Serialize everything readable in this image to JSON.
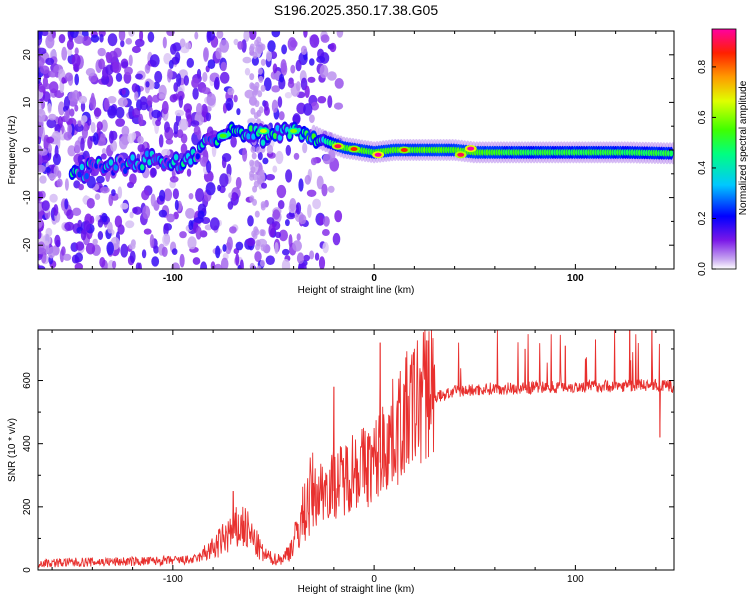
{
  "figure": {
    "title": "S196.2025.350.17.38.G05"
  },
  "chart_data": [
    {
      "type": "heatmap",
      "title": "S196.2025.350.17.38.G05",
      "xlabel": "Height of straight line (km)",
      "ylabel": "Frequency (Hz)",
      "xlim": [
        -167,
        149
      ],
      "ylim": [
        -25,
        25
      ],
      "x_ticks": [
        -100,
        0,
        100
      ],
      "x_tick_labels": [
        "-100",
        "0",
        "100"
      ],
      "y_ticks": [
        -20,
        -10,
        0,
        10,
        20
      ],
      "y_tick_labels": [
        "-20",
        "-10",
        "0",
        "10",
        "20"
      ],
      "colorbar": {
        "label": "Normalized spectral amplitude",
        "range": [
          0,
          0.95
        ],
        "ticks": [
          0.0,
          0.2,
          0.4,
          0.6,
          0.8
        ],
        "tick_labels": [
          "0.0",
          "0.2",
          "0.4",
          "0.6",
          "0.8"
        ],
        "colormap": "rainbow (white-violet-blue-cyan-green-yellow-orange-red-magenta)"
      },
      "ridge": [
        {
          "x": -150,
          "f": -5,
          "amp": 0.3
        },
        {
          "x": -140,
          "f": -4,
          "amp": 0.3
        },
        {
          "x": -125,
          "f": -3,
          "amp": 0.25
        },
        {
          "x": -110,
          "f": -2,
          "amp": 0.3
        },
        {
          "x": -95,
          "f": -3,
          "amp": 0.3
        },
        {
          "x": -85,
          "f": 1,
          "amp": 0.25
        },
        {
          "x": -75,
          "f": 3,
          "amp": 0.35
        },
        {
          "x": -65,
          "f": 4,
          "amp": 0.35
        },
        {
          "x": -55,
          "f": 3,
          "amp": 0.35
        },
        {
          "x": -45,
          "f": 4,
          "amp": 0.4
        },
        {
          "x": -35,
          "f": 4,
          "amp": 0.4
        },
        {
          "x": -25,
          "f": 2,
          "amp": 0.4
        },
        {
          "x": -15,
          "f": 0.5,
          "amp": 0.55
        },
        {
          "x": 0,
          "f": -0.5,
          "amp": 0.55
        },
        {
          "x": 10,
          "f": 0,
          "amp": 0.55
        },
        {
          "x": 20,
          "f": 0,
          "amp": 0.55
        },
        {
          "x": 30,
          "f": 0,
          "amp": 0.55
        },
        {
          "x": 40,
          "f": 0,
          "amp": 0.55
        },
        {
          "x": 50,
          "f": -0.5,
          "amp": 0.55
        },
        {
          "x": 75,
          "f": -0.5,
          "amp": 0.5
        },
        {
          "x": 100,
          "f": -0.5,
          "amp": 0.5
        },
        {
          "x": 125,
          "f": -0.5,
          "amp": 0.5
        },
        {
          "x": 148,
          "f": -0.7,
          "amp": 0.5
        }
      ],
      "peaks": [
        {
          "x": -18,
          "f": 0.8,
          "amp": 0.9
        },
        {
          "x": -10,
          "f": 0.2,
          "amp": 0.85
        },
        {
          "x": 2,
          "f": -1,
          "amp": 0.95
        },
        {
          "x": 15,
          "f": 0,
          "amp": 0.85
        },
        {
          "x": 43,
          "f": -1,
          "amp": 0.9
        },
        {
          "x": 48,
          "f": 0.3,
          "amp": 0.95
        },
        {
          "x": -55,
          "f": 4,
          "amp": 0.65
        },
        {
          "x": -40,
          "f": 4,
          "amp": 0.6
        },
        {
          "x": -75,
          "f": 3,
          "amp": 0.55
        }
      ]
    },
    {
      "type": "line",
      "xlabel": "Height of straight line (km)",
      "ylabel": "SNR (10 * v/v)",
      "xlim": [
        -167,
        149
      ],
      "ylim": [
        0,
        760
      ],
      "x_ticks": [
        -100,
        0,
        100
      ],
      "x_tick_labels": [
        "-100",
        "0",
        "100"
      ],
      "y_ticks": [
        0,
        200,
        400,
        600
      ],
      "y_tick_labels": [
        "0",
        "200",
        "400",
        "600"
      ],
      "series": [
        {
          "name": "SNR",
          "color": "#e8302e",
          "x": [
            -167,
            -140,
            -110,
            -90,
            -80,
            -72,
            -65,
            -60,
            -55,
            -50,
            -45,
            -40,
            -35,
            -30,
            -25,
            -20,
            -15,
            -10,
            -5,
            0,
            5,
            10,
            15,
            20,
            25,
            30,
            35,
            40,
            50,
            60,
            70,
            80,
            90,
            100,
            110,
            120,
            130,
            140,
            149
          ],
          "values": [
            22,
            25,
            28,
            32,
            55,
            95,
            115,
            80,
            40,
            28,
            30,
            70,
            150,
            210,
            240,
            250,
            265,
            300,
            300,
            310,
            360,
            400,
            440,
            480,
            520,
            545,
            555,
            565,
            570,
            575,
            575,
            578,
            580,
            580,
            582,
            583,
            585,
            585,
            580
          ]
        }
      ],
      "spikes": [
        {
          "x": -70,
          "value": 250
        },
        {
          "x": -20,
          "value": 580
        },
        {
          "x": 3,
          "value": 720
        },
        {
          "x": 30,
          "value": 650
        },
        {
          "x": 75,
          "value": 700
        },
        {
          "x": 95,
          "value": 710
        },
        {
          "x": 110,
          "value": 730
        },
        {
          "x": 127,
          "value": 760
        },
        {
          "x": 138,
          "value": 760
        },
        {
          "x": 142,
          "value": 420
        }
      ]
    }
  ]
}
